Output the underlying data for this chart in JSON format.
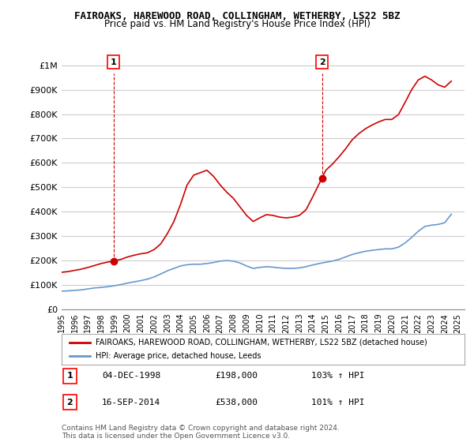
{
  "title": "FAIROAKS, HAREWOOD ROAD, COLLINGHAM, WETHERBY, LS22 5BZ",
  "subtitle": "Price paid vs. HM Land Registry's House Price Index (HPI)",
  "legend_property": "FAIROAKS, HAREWOOD ROAD, COLLINGHAM, WETHERBY, LS22 5BZ (detached house)",
  "legend_hpi": "HPI: Average price, detached house, Leeds",
  "footnote": "Contains HM Land Registry data © Crown copyright and database right 2024.\nThis data is licensed under the Open Government Licence v3.0.",
  "property_color": "#cc0000",
  "hpi_color": "#6699cc",
  "background_color": "#ffffff",
  "grid_color": "#cccccc",
  "ylim": [
    0,
    1050000
  ],
  "yticks": [
    0,
    100000,
    200000,
    300000,
    400000,
    500000,
    600000,
    700000,
    800000,
    900000,
    1000000
  ],
  "ytick_labels": [
    "£0",
    "£100K",
    "£200K",
    "£300K",
    "£400K",
    "£500K",
    "£600K",
    "£700K",
    "£800K",
    "£900K",
    "£1M"
  ],
  "xlim_start": 1995.0,
  "xlim_end": 2025.5,
  "sale1_x": 1998.92,
  "sale1_y": 198000,
  "sale1_label": "1",
  "sale1_date": "04-DEC-1998",
  "sale1_price": "£198,000",
  "sale1_hpi": "103% ↑ HPI",
  "sale2_x": 2014.71,
  "sale2_y": 538000,
  "sale2_label": "2",
  "sale2_date": "16-SEP-2014",
  "sale2_price": "£538,000",
  "sale2_hpi": "101% ↑ HPI",
  "hpi_x": [
    1995.0,
    1995.5,
    1996.0,
    1996.5,
    1997.0,
    1997.5,
    1998.0,
    1998.5,
    1999.0,
    1999.5,
    2000.0,
    2000.5,
    2001.0,
    2001.5,
    2002.0,
    2002.5,
    2003.0,
    2003.5,
    2004.0,
    2004.5,
    2005.0,
    2005.5,
    2006.0,
    2006.5,
    2007.0,
    2007.5,
    2008.0,
    2008.5,
    2009.0,
    2009.5,
    2010.0,
    2010.5,
    2011.0,
    2011.5,
    2012.0,
    2012.5,
    2013.0,
    2013.5,
    2014.0,
    2014.5,
    2015.0,
    2015.5,
    2016.0,
    2016.5,
    2017.0,
    2017.5,
    2018.0,
    2018.5,
    2019.0,
    2019.5,
    2020.0,
    2020.5,
    2021.0,
    2021.5,
    2022.0,
    2022.5,
    2023.0,
    2023.5,
    2024.0,
    2024.5
  ],
  "hpi_y": [
    75000,
    76000,
    78000,
    80000,
    84000,
    88000,
    90000,
    93000,
    97000,
    102000,
    108000,
    113000,
    118000,
    124000,
    133000,
    145000,
    158000,
    168000,
    178000,
    183000,
    185000,
    185000,
    188000,
    192000,
    198000,
    200000,
    198000,
    190000,
    178000,
    168000,
    172000,
    175000,
    173000,
    170000,
    168000,
    168000,
    170000,
    175000,
    182000,
    188000,
    193000,
    198000,
    205000,
    215000,
    225000,
    232000,
    238000,
    242000,
    245000,
    248000,
    248000,
    255000,
    272000,
    295000,
    320000,
    340000,
    345000,
    348000,
    355000,
    390000
  ],
  "prop_x": [
    1995.0,
    1995.5,
    1996.0,
    1996.5,
    1997.0,
    1997.5,
    1998.0,
    1998.5,
    1998.92,
    1999.5,
    2000.0,
    2000.5,
    2001.0,
    2001.5,
    2002.0,
    2002.5,
    2003.0,
    2003.5,
    2004.0,
    2004.5,
    2005.0,
    2005.5,
    2006.0,
    2006.5,
    2007.0,
    2007.5,
    2008.0,
    2008.5,
    2009.0,
    2009.5,
    2010.0,
    2010.5,
    2011.0,
    2011.5,
    2012.0,
    2012.5,
    2013.0,
    2013.5,
    2014.0,
    2014.71,
    2015.0,
    2015.5,
    2016.0,
    2016.5,
    2017.0,
    2017.5,
    2018.0,
    2018.5,
    2019.0,
    2019.5,
    2020.0,
    2020.5,
    2021.0,
    2021.5,
    2022.0,
    2022.5,
    2023.0,
    2023.5,
    2024.0,
    2024.5
  ],
  "prop_y": [
    152000,
    155000,
    160000,
    165000,
    172000,
    180000,
    188000,
    194000,
    198000,
    205000,
    215000,
    222000,
    228000,
    232000,
    245000,
    268000,
    310000,
    360000,
    430000,
    510000,
    550000,
    560000,
    570000,
    545000,
    510000,
    480000,
    455000,
    420000,
    385000,
    360000,
    375000,
    388000,
    385000,
    378000,
    375000,
    378000,
    385000,
    408000,
    460000,
    538000,
    570000,
    595000,
    625000,
    658000,
    695000,
    720000,
    740000,
    755000,
    768000,
    778000,
    778000,
    798000,
    848000,
    900000,
    940000,
    955000,
    940000,
    920000,
    910000,
    935000
  ]
}
